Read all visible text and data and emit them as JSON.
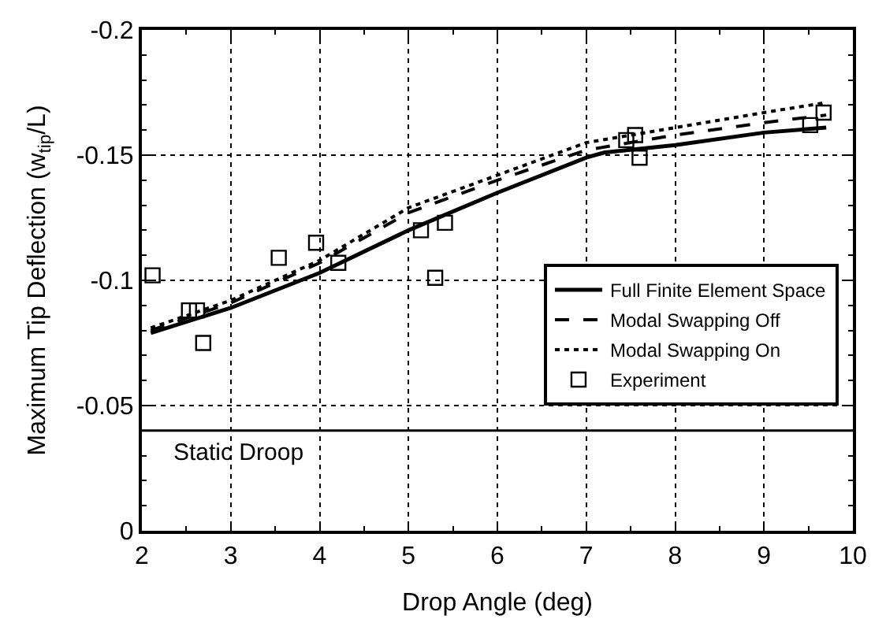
{
  "chart_data": {
    "type": "line",
    "xlabel": "Drop Angle (deg)",
    "ylabel": "Maximum Tip Deflection (w$_{tip}$/L)",
    "xlim": [
      2,
      10
    ],
    "xticks": [
      2,
      3,
      4,
      5,
      6,
      7,
      8,
      9,
      10
    ],
    "ylim": [
      0,
      -0.2
    ],
    "yticks": [
      0,
      -0.05,
      -0.1,
      -0.15,
      -0.2
    ],
    "grid": true,
    "legend": "bottom right",
    "ref_lines": [
      {
        "axis": "y",
        "value": -0.04,
        "label": "Static Droop",
        "color": "#000000",
        "line_style": "solid"
      }
    ],
    "series": [
      {
        "name": "Full Finite Element Space",
        "line_style": "solid",
        "color": "#000000",
        "x": [
          2.1,
          3,
          4,
          5,
          6,
          7,
          7.2,
          8,
          9,
          9.7
        ],
        "values": [
          -0.079,
          -0.089,
          -0.103,
          -0.12,
          -0.135,
          -0.149,
          -0.151,
          -0.154,
          -0.159,
          -0.161
        ]
      },
      {
        "name": "Modal Swapping Off",
        "line_style": "dashed",
        "color": "#000000",
        "x": [
          2.1,
          3,
          4,
          5,
          6,
          7,
          8,
          9,
          9.7
        ],
        "values": [
          -0.08,
          -0.091,
          -0.107,
          -0.127,
          -0.14,
          -0.152,
          -0.158,
          -0.163,
          -0.166
        ]
      },
      {
        "name": "Modal Swapping On",
        "line_style": "dotted",
        "color": "#000000",
        "x": [
          2.1,
          3,
          4,
          5,
          6,
          7,
          8,
          9,
          9.7
        ],
        "values": [
          -0.081,
          -0.092,
          -0.108,
          -0.129,
          -0.142,
          -0.155,
          -0.161,
          -0.167,
          -0.171
        ]
      },
      {
        "name": "Experiment",
        "type": "scatter",
        "marker": "square",
        "color": "#000000",
        "x": [
          2.12,
          2.53,
          2.62,
          2.69,
          3.54,
          3.96,
          4.21,
          5.14,
          5.3,
          5.41,
          7.45,
          7.55,
          7.6,
          9.52,
          9.67
        ],
        "values": [
          -0.102,
          -0.088,
          -0.088,
          -0.075,
          -0.109,
          -0.115,
          -0.107,
          -0.12,
          -0.101,
          -0.123,
          -0.156,
          -0.158,
          -0.149,
          -0.162,
          -0.167
        ]
      }
    ]
  }
}
